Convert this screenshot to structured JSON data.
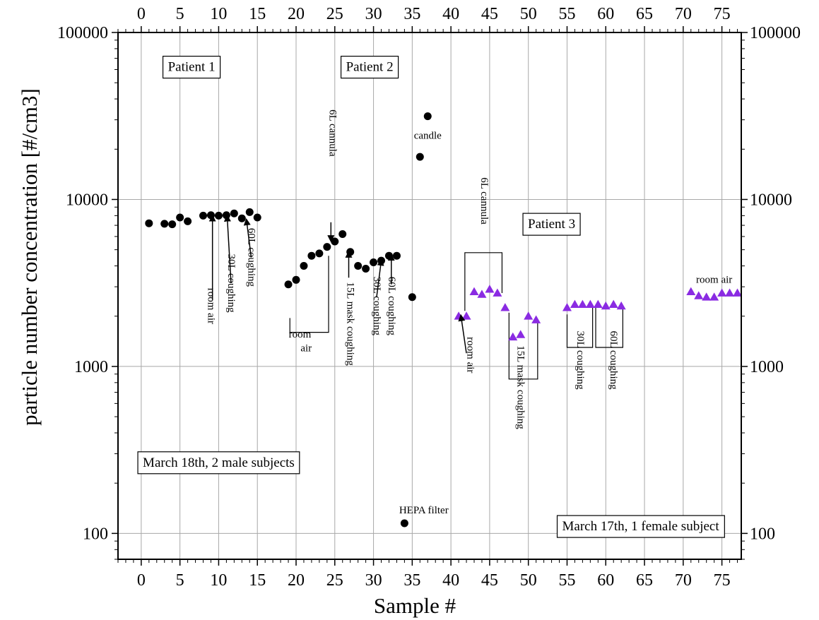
{
  "chart_data": {
    "type": "scatter",
    "title": "",
    "xlabel": "Sample #",
    "ylabel": "particle number concentration [#/cm3]",
    "xlim": [
      -3,
      77.5
    ],
    "ylim": [
      70,
      100000
    ],
    "yscale": "log",
    "grid": true,
    "x_ticks": [
      0,
      5,
      10,
      15,
      20,
      25,
      30,
      35,
      40,
      45,
      50,
      55,
      60,
      65,
      70,
      75
    ],
    "y_ticks": [
      {
        "value": 100,
        "label": "100"
      },
      {
        "value": 1000,
        "label": "1000"
      },
      {
        "value": 10000,
        "label": "10000"
      },
      {
        "value": 100000,
        "label": "100000"
      }
    ],
    "series": [
      {
        "marker": "circle",
        "color": "#000000",
        "points": [
          [
            1,
            7200
          ],
          [
            3,
            7150
          ],
          [
            4,
            7100
          ],
          [
            5,
            7800
          ],
          [
            6,
            7400
          ],
          [
            8,
            8000
          ],
          [
            9,
            8050
          ],
          [
            10,
            8000
          ],
          [
            11,
            8050
          ],
          [
            12,
            8250
          ],
          [
            13,
            7700
          ],
          [
            14,
            8400
          ],
          [
            15,
            7800
          ],
          [
            19,
            3100
          ],
          [
            20,
            3300
          ],
          [
            21,
            4000
          ],
          [
            22,
            4600
          ],
          [
            23,
            4750
          ],
          [
            24,
            5200
          ],
          [
            25,
            5600
          ],
          [
            26,
            6200
          ],
          [
            27,
            4850
          ],
          [
            28,
            4000
          ],
          [
            29,
            3850
          ],
          [
            30,
            4200
          ],
          [
            31,
            4300
          ],
          [
            32,
            4600
          ],
          [
            33,
            4600
          ],
          [
            34,
            115
          ],
          [
            35,
            2600
          ],
          [
            36,
            18000
          ],
          [
            37,
            31500
          ]
        ]
      },
      {
        "marker": "triangle",
        "color": "#8a2be2",
        "points": [
          [
            41,
            2000
          ],
          [
            42,
            2000
          ],
          [
            43,
            2800
          ],
          [
            44,
            2700
          ],
          [
            45,
            2900
          ],
          [
            46,
            2750
          ],
          [
            47,
            2250
          ],
          [
            48,
            1500
          ],
          [
            49,
            1550
          ],
          [
            50,
            2000
          ],
          [
            51,
            1900
          ],
          [
            55,
            2250
          ],
          [
            56,
            2350
          ],
          [
            57,
            2350
          ],
          [
            58,
            2350
          ],
          [
            59,
            2350
          ],
          [
            60,
            2300
          ],
          [
            61,
            2350
          ],
          [
            62,
            2300
          ],
          [
            71,
            2800
          ],
          [
            72,
            2650
          ],
          [
            73,
            2600
          ],
          [
            74,
            2600
          ],
          [
            75,
            2750
          ],
          [
            76,
            2750
          ],
          [
            77,
            2750
          ]
        ]
      }
    ],
    "boxed_labels": [
      {
        "text": "Patient 1",
        "x": 6.5,
        "y": 62000
      },
      {
        "text": "Patient 2",
        "x": 29.5,
        "y": 62000
      },
      {
        "text": "Patient 3",
        "x": 53.0,
        "y": 7100
      },
      {
        "text": "March 18th, 2 male subjects",
        "x": 10.0,
        "y": 265
      },
      {
        "text": "March 17th, 1 female subject",
        "x": 64.5,
        "y": 110
      }
    ],
    "annotations": [
      {
        "text": "room air",
        "x": 9,
        "y": 2300,
        "rotate": 90
      },
      {
        "text": "30L coughing",
        "x": 11.6,
        "y": 3150,
        "rotate": 90
      },
      {
        "text": "60L coughing",
        "x": 14.2,
        "y": 4500,
        "rotate": 90
      },
      {
        "text": "6L cannula",
        "x": 24.7,
        "y": 25000,
        "rotate": 90
      },
      {
        "text": "room",
        "x": 20.5,
        "y": 1550,
        "rotate": 0
      },
      {
        "text": "air",
        "x": 21.3,
        "y": 1280,
        "rotate": 0
      },
      {
        "text": "15L mask coughing",
        "x": 27.0,
        "y": 1800,
        "rotate": 90
      },
      {
        "text": "30L coughing",
        "x": 30.4,
        "y": 2300,
        "rotate": 90
      },
      {
        "text": "60L coughing",
        "x": 32.3,
        "y": 2300,
        "rotate": 90
      },
      {
        "text": "candle",
        "x": 37.0,
        "y": 24000,
        "rotate": 0
      },
      {
        "text": "HEPA filter",
        "x": 36.5,
        "y": 137,
        "rotate": 0
      },
      {
        "text": "6L cannula",
        "x": 44.3,
        "y": 9800,
        "rotate": 90
      },
      {
        "text": "room air",
        "x": 42.5,
        "y": 1170,
        "rotate": 90
      },
      {
        "text": "15L mask coughing",
        "x": 49.0,
        "y": 750,
        "rotate": 90
      },
      {
        "text": "30L coughing",
        "x": 56.7,
        "y": 1090,
        "rotate": 90
      },
      {
        "text": "60L coughing",
        "x": 61.0,
        "y": 1090,
        "rotate": 90
      },
      {
        "text": "room air",
        "x": 74.0,
        "y": 3300,
        "rotate": 0
      }
    ],
    "arrows": [
      {
        "from": [
          9.2,
          2500
        ],
        "to": [
          9.2,
          7900
        ]
      },
      {
        "from": [
          11.6,
          3150
        ],
        "to": [
          11.1,
          7900
        ]
      },
      {
        "from": [
          14.2,
          4500
        ],
        "to": [
          13.6,
          7500
        ]
      },
      {
        "from": [
          24.5,
          7300
        ],
        "to": [
          24.5,
          5700
        ]
      },
      {
        "from": [
          26.8,
          3400
        ],
        "to": [
          26.8,
          4800
        ]
      },
      {
        "from": [
          30.4,
          2600
        ],
        "to": [
          31.0,
          4300
        ]
      },
      {
        "from": [
          32.3,
          3100
        ],
        "to": [
          32.3,
          4600
        ]
      },
      {
        "from": [
          42.0,
          1200
        ],
        "to": [
          41.3,
          2000
        ]
      }
    ],
    "brackets": [
      {
        "points": [
          [
            19.2,
            1950
          ],
          [
            19.2,
            1600
          ],
          [
            24.2,
            1600
          ],
          [
            24.2,
            4600
          ]
        ]
      },
      {
        "points": [
          [
            41.8,
            2150
          ],
          [
            41.8,
            4800
          ],
          [
            46.6,
            4800
          ],
          [
            46.6,
            2750
          ]
        ]
      },
      {
        "points": [
          [
            47.5,
            2100
          ],
          [
            47.5,
            840
          ],
          [
            51.2,
            840
          ],
          [
            51.2,
            1850
          ]
        ]
      },
      {
        "points": [
          [
            55.0,
            2050
          ],
          [
            55.0,
            1300
          ],
          [
            58.3,
            1300
          ],
          [
            58.3,
            2300
          ]
        ]
      },
      {
        "points": [
          [
            58.7,
            2300
          ],
          [
            58.7,
            1300
          ],
          [
            62.2,
            1300
          ],
          [
            62.2,
            2200
          ]
        ]
      }
    ]
  }
}
